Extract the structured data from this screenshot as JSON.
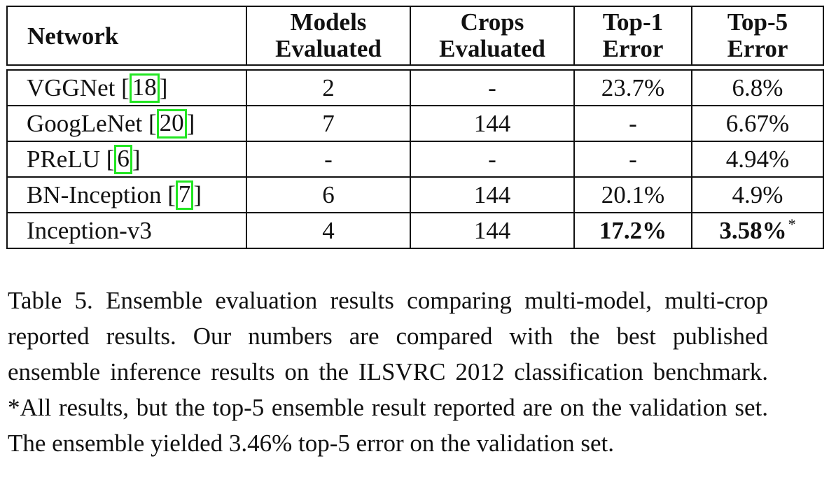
{
  "table": {
    "headers": {
      "network": "Network",
      "models_line1": "Models",
      "models_line2": "Evaluated",
      "crops_line1": "Crops",
      "crops_line2": "Evaluated",
      "top1_line1": "Top-1",
      "top1_line2": "Error",
      "top5_line1": "Top-5",
      "top5_line2": "Error"
    },
    "rows": [
      {
        "network": "VGGNet",
        "cite_open": "[",
        "cite": "18",
        "cite_close": "]",
        "models": "2",
        "crops": "-",
        "top1": "23.7%",
        "top5": "6.8%"
      },
      {
        "network": "GoogLeNet",
        "cite_open": "[",
        "cite": "20",
        "cite_close": "]",
        "models": "7",
        "crops": "144",
        "top1": "-",
        "top5": "6.67%"
      },
      {
        "network": "PReLU",
        "cite_open": "[",
        "cite": "6",
        "cite_close": "]",
        "models": "-",
        "crops": "-",
        "top1": "-",
        "top5": "4.94%"
      },
      {
        "network": "BN-Inception",
        "cite_open": "[",
        "cite": "7",
        "cite_close": "]",
        "models": "6",
        "crops": "144",
        "top1": "20.1%",
        "top5": "4.9%"
      },
      {
        "network": "Inception-v3",
        "models": "4",
        "crops": "144",
        "top1": "17.2%",
        "top5": "3.58%",
        "top5_mark": "*"
      }
    ]
  },
  "caption": {
    "text": "Table 5. Ensemble evaluation results comparing multi-model, multi-crop reported results. Our numbers are compared with the best published ensemble inference results on the ILSVRC 2012 classification benchmark. *All results, but the top-5 ensemble result reported are on the validation set. The ensemble yielded 3.46% top-5 error on the validation set."
  }
}
